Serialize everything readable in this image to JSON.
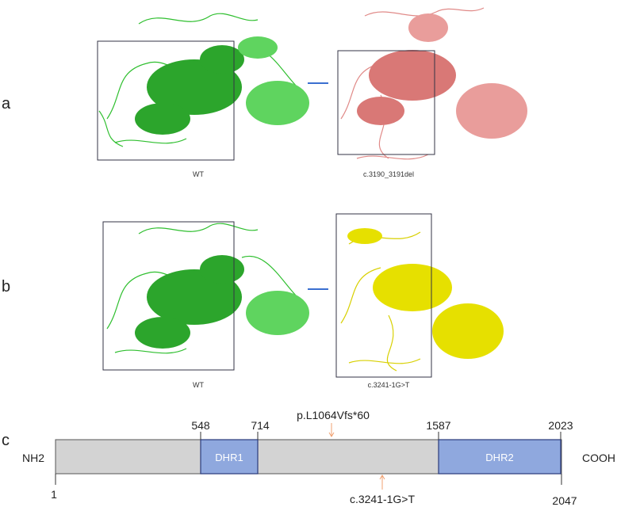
{
  "panels": {
    "a": {
      "letter": "a",
      "left_caption": "WT",
      "right_caption": "c.3190_3191del",
      "left_color": "#2fbf2f",
      "right_color": "#e08a88"
    },
    "b": {
      "letter": "b",
      "left_caption": "WT",
      "right_caption": "c.3241-1G>T",
      "left_color": "#2fbf2f",
      "right_color": "#e6e000"
    },
    "c": {
      "letter": "c",
      "n_terminus": "NH2",
      "c_terminus": "COOH",
      "start_pos": "1",
      "end_pos": "2047",
      "domains": [
        {
          "name": "DHR1",
          "start": "548",
          "end": "714",
          "color": "#8fa8de"
        },
        {
          "name": "DHR2",
          "start": "1587",
          "end": "2023",
          "color": "#8fa8de"
        }
      ],
      "mutation_top": "p.L1064Vfs*60",
      "mutation_bottom": "c.3241-1G>T",
      "bar_color": "#d3d3d3",
      "arrow_color": "#f0a070"
    }
  }
}
